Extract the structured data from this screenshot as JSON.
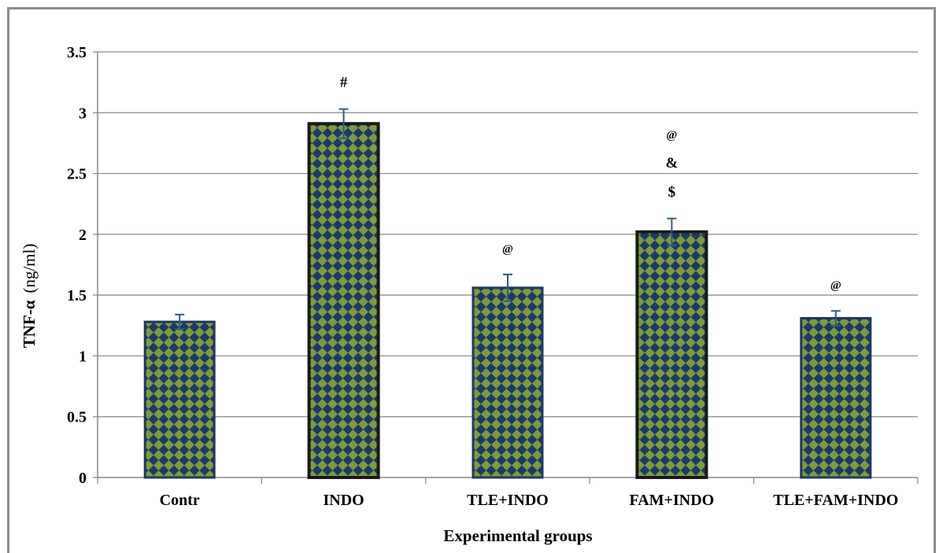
{
  "chart_data": {
    "type": "bar",
    "categories": [
      "Contr",
      "INDO",
      "TLE+INDO",
      "FAM+INDO",
      "TLE+FAM+INDO"
    ],
    "values": [
      1.28,
      2.91,
      1.56,
      2.02,
      1.31
    ],
    "errors": [
      0.06,
      0.12,
      0.11,
      0.11,
      0.06
    ],
    "annotations": [
      [],
      [
        "#"
      ],
      [
        "@"
      ],
      [
        "@",
        "&",
        "$"
      ],
      [
        "@"
      ]
    ],
    "ylim": [
      0,
      3.5
    ],
    "yticks": [
      "0",
      "0.5",
      "1",
      "1.5",
      "2",
      "2.5",
      "3",
      "3.5"
    ],
    "xlabel": "Experimental groups",
    "ylabel_main": "TNF-α",
    "ylabel_unit": "(ng/ml)",
    "grid": true,
    "colors": {
      "bar_fill": "#1b3a66",
      "bar_pattern": "#7f9a3e",
      "bar_border_light": "#1f3864",
      "bar_border_dark": "#1a1a1a",
      "error_bar": "#2e5a8a",
      "grid": "#868686",
      "axis": "#868686"
    }
  }
}
